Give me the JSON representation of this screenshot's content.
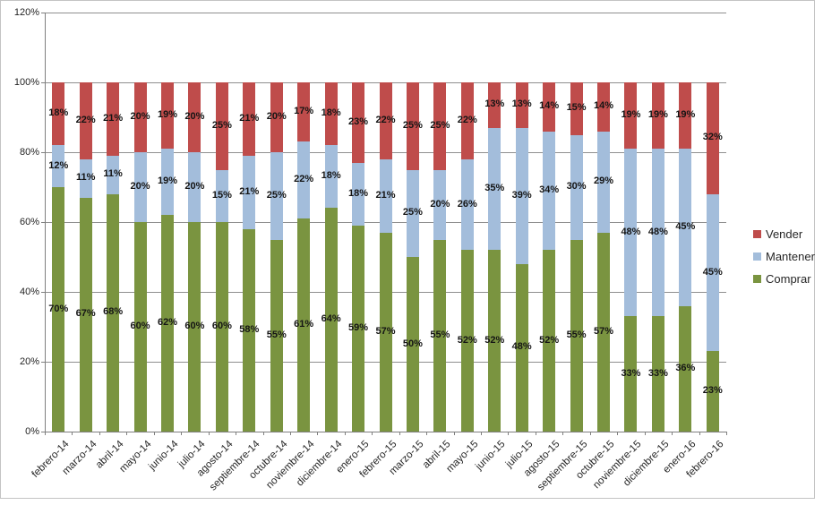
{
  "chart_data": {
    "type": "bar",
    "variant": "stacked-100-percent",
    "title": "",
    "xlabel": "",
    "ylabel": "",
    "ylim": [
      0,
      120
    ],
    "y_tick_step": 20,
    "y_tick_labels": [
      "0%",
      "20%",
      "40%",
      "60%",
      "80%",
      "100%",
      "120%"
    ],
    "grid": true,
    "legend_position": "right",
    "categories": [
      "febrero-14",
      "marzo-14",
      "abril-14",
      "mayo-14",
      "junio-14",
      "julio-14",
      "agosto-14",
      "septiembre-14",
      "octubre-14",
      "noviembre-14",
      "diciembre-14",
      "enero-15",
      "febrero-15",
      "marzo-15",
      "abril-15",
      "mayo-15",
      "junio-15",
      "julio-15",
      "agosto-15",
      "septiembre-15",
      "octubre-15",
      "noviembre-15",
      "diciembre-15",
      "enero-16",
      "febrero-16"
    ],
    "series": [
      {
        "name": "Comprar",
        "color": "#7a9440",
        "values": [
          70,
          67,
          68,
          60,
          62,
          60,
          60,
          58,
          55,
          61,
          64,
          59,
          57,
          50,
          55,
          52,
          52,
          48,
          52,
          55,
          57,
          33,
          33,
          36,
          23
        ]
      },
      {
        "name": "Mantener",
        "color": "#a3bddb",
        "values": [
          12,
          11,
          11,
          20,
          19,
          20,
          15,
          21,
          25,
          22,
          18,
          18,
          21,
          25,
          20,
          26,
          35,
          39,
          34,
          30,
          29,
          48,
          48,
          45,
          45
        ]
      },
      {
        "name": "Vender",
        "color": "#bf4c4b",
        "values": [
          18,
          22,
          21,
          20,
          19,
          20,
          25,
          21,
          20,
          17,
          18,
          23,
          22,
          25,
          25,
          22,
          13,
          13,
          14,
          15,
          14,
          19,
          19,
          19,
          32
        ]
      }
    ],
    "data_label_format": "percent",
    "legend_items": [
      {
        "label": "Vender",
        "color": "#bf4c4b"
      },
      {
        "label": "Mantener",
        "color": "#a3bddb"
      },
      {
        "label": "Comprar",
        "color": "#7a9440"
      }
    ]
  }
}
